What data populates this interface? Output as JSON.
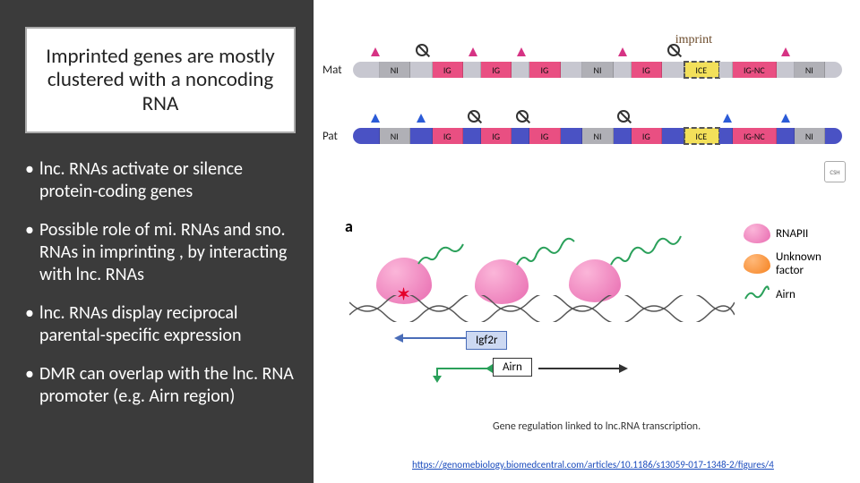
{
  "title": "Imprinted genes are mostly clustered with a noncoding RNA",
  "bullets": [
    "lnc. RNAs activate or silence protein-coding genes",
    "Possible role of mi. RNAs and sno. RNAs in imprinting , by interacting with lnc. RNAs",
    "lnc. RNAs display reciprocal parental-specific expression",
    "DMR can overlap with the lnc. RNA promoter (e.g. Airn region)"
  ],
  "imprint_label": "imprint",
  "csh_label": "CSH",
  "chromosomes": {
    "mat": {
      "label": "Mat",
      "base_color": "#c7c7d0",
      "gap_color": "#b0b0b6",
      "ig_color": "#e94f82",
      "ice_color": "#f3e05a",
      "segments": [
        {
          "label": "",
          "w": 6,
          "type": "base",
          "arrow": "mag",
          "arrow_pos": "right"
        },
        {
          "label": "NI",
          "w": 7,
          "type": "gap"
        },
        {
          "label": "",
          "w": 5,
          "type": "base",
          "prohibit": true
        },
        {
          "label": "IG",
          "w": 7,
          "type": "ig"
        },
        {
          "label": "",
          "w": 4,
          "type": "base",
          "arrow": "mag"
        },
        {
          "label": "IG",
          "w": 7,
          "type": "ig"
        },
        {
          "label": "",
          "w": 4,
          "type": "base",
          "arrow": "mag"
        },
        {
          "label": "IG",
          "w": 7,
          "type": "ig"
        },
        {
          "label": "",
          "w": 5,
          "type": "base"
        },
        {
          "label": "NI",
          "w": 7,
          "type": "gap"
        },
        {
          "label": "",
          "w": 4,
          "type": "base",
          "arrow": "mag"
        },
        {
          "label": "IG",
          "w": 7,
          "type": "ig"
        },
        {
          "label": "",
          "w": 5,
          "type": "base",
          "prohibit": true
        },
        {
          "label": "ICE",
          "w": 8,
          "type": "ice",
          "ice": true,
          "imprint": true
        },
        {
          "label": "",
          "w": 3,
          "type": "base"
        },
        {
          "label": "IG-NC",
          "w": 10,
          "type": "ig"
        },
        {
          "label": "",
          "w": 4,
          "type": "base",
          "arrow": "mag"
        },
        {
          "label": "NI",
          "w": 7,
          "type": "gap"
        },
        {
          "label": "",
          "w": 4,
          "type": "base"
        }
      ]
    },
    "pat": {
      "label": "Pat",
      "base_color": "#4a52c4",
      "gap_color": "#b0b0b6",
      "ig_color": "#e94f82",
      "ice_color": "#f3e05a",
      "segments": [
        {
          "label": "",
          "w": 6,
          "type": "base",
          "arrow": "blu",
          "arrow_pos": "right"
        },
        {
          "label": "NI",
          "w": 7,
          "type": "gap"
        },
        {
          "label": "",
          "w": 5,
          "type": "base",
          "arrow": "blu"
        },
        {
          "label": "IG",
          "w": 7,
          "type": "ig"
        },
        {
          "label": "",
          "w": 4,
          "type": "base",
          "prohibit": true
        },
        {
          "label": "IG",
          "w": 7,
          "type": "ig"
        },
        {
          "label": "",
          "w": 4,
          "type": "base",
          "prohibit": true
        },
        {
          "label": "IG",
          "w": 7,
          "type": "ig"
        },
        {
          "label": "",
          "w": 5,
          "type": "base"
        },
        {
          "label": "NI",
          "w": 7,
          "type": "gap"
        },
        {
          "label": "",
          "w": 4,
          "type": "base",
          "prohibit": true
        },
        {
          "label": "IG",
          "w": 7,
          "type": "ig"
        },
        {
          "label": "",
          "w": 5,
          "type": "base"
        },
        {
          "label": "ICE",
          "w": 8,
          "type": "ice",
          "ice": true
        },
        {
          "label": "",
          "w": 3,
          "type": "base",
          "arrow": "blu"
        },
        {
          "label": "IG-NC",
          "w": 10,
          "type": "ig"
        },
        {
          "label": "",
          "w": 4,
          "type": "base",
          "arrow": "blu"
        },
        {
          "label": "NI",
          "w": 7,
          "type": "gap"
        },
        {
          "label": "",
          "w": 4,
          "type": "base"
        }
      ]
    }
  },
  "panel": {
    "a_label": "a",
    "igf2r_label": "Igf2r",
    "airn_label": "Airn",
    "igf2r_color": "#6a8dd4",
    "airn_color": "#3a9a3a",
    "x_mark": "✶",
    "legend": {
      "rnapii": "RNAPII",
      "unknown": "Unknown factor",
      "airn": "Airn"
    }
  },
  "caption": "Gene regulation linked to lnc.RNA transcription.",
  "url": "https://genomebiology.biomedcentral.com/articles/10.1186/s13059-017-1348-2/figures/4",
  "colors": {
    "sidebar_bg": "#3b3b3b",
    "pink": "#e86bb0",
    "orange": "#f58220",
    "green": "#2aa05a"
  }
}
